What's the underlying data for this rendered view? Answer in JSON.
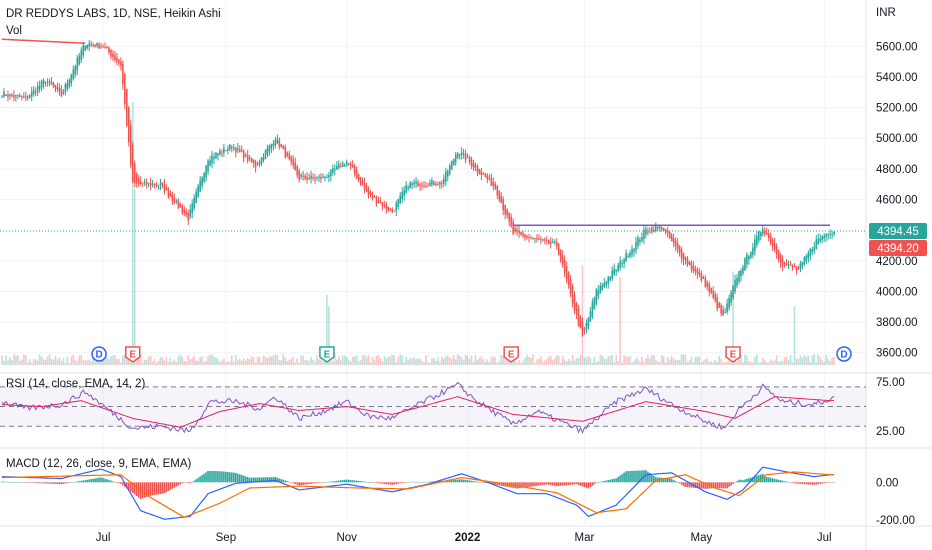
{
  "header": {
    "symbol_line": "DR REDDYS LABS, 1D, NSE, Heikin Ashi",
    "vol_label": "Vol",
    "currency": "INR"
  },
  "colors": {
    "up": "#26a69a",
    "down": "#ef5350",
    "resistance": "#7e57c2",
    "rsi_line": "#7e57c2",
    "rsi_ma": "#e91e63",
    "macd_line": "#2962ff",
    "signal_line": "#ff6d00",
    "grid": "#f0f3fa",
    "axis_text": "#131722"
  },
  "chart_data": [
    {
      "type": "candlestick",
      "title": "DR REDDYS LABS, 1D, NSE, Heikin Ashi",
      "ylabel": "INR",
      "ylim": [
        3520,
        5850
      ],
      "y_ticks": [
        "5600.00",
        "5400.00",
        "5200.00",
        "5000.00",
        "4800.00",
        "4600.00",
        "4200.00",
        "4000.00",
        "3800.00",
        "3600.00"
      ],
      "x_ticks": [
        "Jul",
        "Sep",
        "Nov",
        "2022",
        "Mar",
        "May",
        "Jul"
      ],
      "x_tick_days": [
        51,
        113,
        174,
        235,
        294,
        353,
        415
      ],
      "day_range": [
        0,
        425
      ],
      "anchors": [
        [
          0,
          5290
        ],
        [
          12,
          5260
        ],
        [
          22,
          5380
        ],
        [
          30,
          5280
        ],
        [
          42,
          5620
        ],
        [
          51,
          5600
        ],
        [
          60,
          5480
        ],
        [
          66,
          4700
        ],
        [
          80,
          4700
        ],
        [
          94,
          4480
        ],
        [
          104,
          4870
        ],
        [
          116,
          4950
        ],
        [
          128,
          4820
        ],
        [
          138,
          5000
        ],
        [
          150,
          4740
        ],
        [
          162,
          4740
        ],
        [
          174,
          4850
        ],
        [
          185,
          4630
        ],
        [
          197,
          4520
        ],
        [
          205,
          4700
        ],
        [
          222,
          4710
        ],
        [
          230,
          4920
        ],
        [
          238,
          4820
        ],
        [
          249,
          4680
        ],
        [
          258,
          4380
        ],
        [
          266,
          4350
        ],
        [
          280,
          4300
        ],
        [
          293,
          3700
        ],
        [
          300,
          4000
        ],
        [
          310,
          4150
        ],
        [
          325,
          4400
        ],
        [
          333,
          4420
        ],
        [
          342,
          4250
        ],
        [
          355,
          4050
        ],
        [
          364,
          3830
        ],
        [
          371,
          4100
        ],
        [
          384,
          4420
        ],
        [
          394,
          4180
        ],
        [
          402,
          4140
        ],
        [
          411,
          4330
        ],
        [
          418,
          4394
        ]
      ],
      "last_close": "4394.45",
      "reference_price": "4394.20",
      "resistance": {
        "from_day": 258,
        "to_day": 418,
        "price": 4432
      },
      "earlier_line": {
        "from_day": 0,
        "to_day": 42,
        "price": 5620
      },
      "events": [
        {
          "day": 49,
          "label": "D"
        },
        {
          "day": 66,
          "label": "E"
        },
        {
          "day": 164,
          "label": "E"
        },
        {
          "day": 257,
          "label": "E"
        },
        {
          "day": 369,
          "label": "E"
        },
        {
          "day": 425,
          "label": "D"
        }
      ]
    },
    {
      "type": "bar",
      "title": "Vol",
      "spikes": [
        [
          66,
          4.5
        ],
        [
          67,
          3.0
        ],
        [
          164,
          1.2
        ],
        [
          165,
          1.0
        ],
        [
          293,
          1.7
        ],
        [
          312,
          1.5
        ],
        [
          369,
          1.6
        ],
        [
          400,
          1.0
        ]
      ]
    },
    {
      "type": "line",
      "title": "RSI (14, close, EMA, 14, 2)",
      "ylim": [
        12,
        80
      ],
      "y_ticks": [
        "75.00",
        "25.00"
      ],
      "levels": [
        70,
        50,
        30
      ],
      "series": [
        {
          "name": "RSI",
          "anchors": [
            [
              0,
              55
            ],
            [
              12,
              48
            ],
            [
              30,
              52
            ],
            [
              42,
              65
            ],
            [
              55,
              45
            ],
            [
              66,
              28
            ],
            [
              80,
              30
            ],
            [
              95,
              25
            ],
            [
              105,
              55
            ],
            [
              118,
              55
            ],
            [
              130,
              48
            ],
            [
              138,
              60
            ],
            [
              150,
              38
            ],
            [
              162,
              45
            ],
            [
              174,
              55
            ],
            [
              185,
              40
            ],
            [
              197,
              38
            ],
            [
              210,
              52
            ],
            [
              230,
              72
            ],
            [
              240,
              55
            ],
            [
              258,
              32
            ],
            [
              270,
              45
            ],
            [
              293,
              25
            ],
            [
              310,
              55
            ],
            [
              325,
              68
            ],
            [
              340,
              50
            ],
            [
              355,
              35
            ],
            [
              365,
              28
            ],
            [
              371,
              45
            ],
            [
              384,
              70
            ],
            [
              394,
              55
            ],
            [
              410,
              52
            ],
            [
              418,
              58
            ]
          ]
        },
        {
          "name": "EMA",
          "anchors": [
            [
              0,
              52
            ],
            [
              20,
              50
            ],
            [
              40,
              56
            ],
            [
              66,
              38
            ],
            [
              90,
              29
            ],
            [
              110,
              45
            ],
            [
              130,
              53
            ],
            [
              150,
              46
            ],
            [
              174,
              50
            ],
            [
              197,
              42
            ],
            [
              230,
              60
            ],
            [
              258,
              42
            ],
            [
              293,
              35
            ],
            [
              325,
              55
            ],
            [
              355,
              45
            ],
            [
              370,
              38
            ],
            [
              390,
              60
            ],
            [
              418,
              56
            ]
          ]
        }
      ]
    },
    {
      "type": "line",
      "title": "MACD (12, 26, close, 9, EMA, EMA)",
      "ylim": [
        -220,
        160
      ],
      "y_ticks": [
        "0.00",
        "-200.00"
      ],
      "series": [
        {
          "name": "MACD",
          "anchors": [
            [
              0,
              30
            ],
            [
              30,
              20
            ],
            [
              50,
              70
            ],
            [
              60,
              30
            ],
            [
              70,
              -150
            ],
            [
              82,
              -195
            ],
            [
              95,
              -180
            ],
            [
              104,
              -60
            ],
            [
              118,
              -5
            ],
            [
              138,
              10
            ],
            [
              150,
              -40
            ],
            [
              174,
              -10
            ],
            [
              197,
              -50
            ],
            [
              215,
              -10
            ],
            [
              232,
              45
            ],
            [
              245,
              0
            ],
            [
              260,
              -60
            ],
            [
              275,
              -60
            ],
            [
              290,
              -120
            ],
            [
              296,
              -180
            ],
            [
              310,
              -120
            ],
            [
              325,
              40
            ],
            [
              338,
              50
            ],
            [
              355,
              -50
            ],
            [
              366,
              -90
            ],
            [
              374,
              -40
            ],
            [
              384,
              80
            ],
            [
              396,
              55
            ],
            [
              410,
              30
            ],
            [
              418,
              40
            ]
          ]
        },
        {
          "name": "Signal",
          "anchors": [
            [
              0,
              25
            ],
            [
              40,
              35
            ],
            [
              60,
              40
            ],
            [
              75,
              -80
            ],
            [
              92,
              -185
            ],
            [
              110,
              -110
            ],
            [
              125,
              -30
            ],
            [
              150,
              -20
            ],
            [
              180,
              -30
            ],
            [
              205,
              -35
            ],
            [
              232,
              25
            ],
            [
              255,
              -10
            ],
            [
              280,
              -55
            ],
            [
              300,
              -160
            ],
            [
              315,
              -140
            ],
            [
              330,
              10
            ],
            [
              345,
              40
            ],
            [
              360,
              -30
            ],
            [
              372,
              -70
            ],
            [
              386,
              40
            ],
            [
              400,
              55
            ],
            [
              418,
              40
            ]
          ]
        }
      ]
    }
  ]
}
